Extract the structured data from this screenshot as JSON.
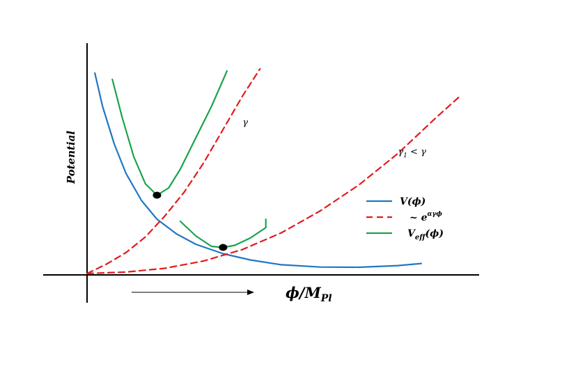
{
  "chart_data": {
    "type": "line",
    "title": "",
    "xlabel": "ϕ/M",
    "xlabel_sub": "Pl",
    "ylabel": "Potential",
    "xlim": [
      0,
      10
    ],
    "ylim": [
      0,
      10
    ],
    "grid": false,
    "direction_arrow": true,
    "curve_labels": [
      {
        "text": "γ",
        "x": 4.0,
        "y": 7.1
      },
      {
        "text": "γ",
        "sub": "1",
        "rest": " < γ",
        "x": 8.0,
        "y": 5.7
      }
    ],
    "legend": {
      "placement": "right",
      "entries": [
        {
          "pre": "V(",
          "sym": "ϕ",
          "post": ")",
          "sub": "",
          "sup": "",
          "color": "#1f77c4",
          "dash": "solid"
        },
        {
          "pre": "~ e",
          "sym": "",
          "post": "",
          "sub": "",
          "sup": "αγϕ",
          "color": "#e31a1c",
          "dash": "dashed"
        },
        {
          "pre": "V",
          "sym": "ϕ",
          "post": ")",
          "sub": "eff",
          "sup": "",
          "color": "#1aa34a",
          "dash": "solid"
        }
      ]
    },
    "series": [
      {
        "name": "V(ϕ)",
        "color": "#1f77c4",
        "dash": "solid",
        "x": [
          0.2,
          0.4,
          0.7,
          1.0,
          1.4,
          1.8,
          2.3,
          2.8,
          3.5,
          4.2,
          5.0,
          6.0,
          7.0,
          8.0,
          8.6
        ],
        "y": [
          9.6,
          8.0,
          6.2,
          4.8,
          3.5,
          2.6,
          1.9,
          1.4,
          0.95,
          0.65,
          0.42,
          0.31,
          0.3,
          0.38,
          0.48
        ]
      },
      {
        "name": "~ e^(αγϕ), γ",
        "color": "#e31a1c",
        "dash": "dashed",
        "x": [
          0.0,
          0.5,
          1.0,
          1.5,
          2.0,
          2.5,
          3.0,
          3.5,
          4.0,
          4.45
        ],
        "y": [
          0.0,
          0.45,
          1.0,
          1.75,
          2.75,
          3.9,
          5.3,
          6.9,
          8.5,
          9.8
        ]
      },
      {
        "name": "~ e^(αγ₁ϕ), γ₁ < γ",
        "color": "#e31a1c",
        "dash": "dashed",
        "x": [
          0.0,
          1.0,
          2.0,
          3.0,
          4.0,
          5.0,
          6.0,
          7.0,
          8.0,
          9.0,
          9.6
        ],
        "y": [
          0.0,
          0.07,
          0.25,
          0.6,
          1.15,
          1.95,
          3.0,
          4.25,
          5.75,
          7.5,
          8.5
        ]
      },
      {
        "name": "V_eff(ϕ), γ",
        "color": "#1aa34a",
        "dash": "solid",
        "x": [
          0.65,
          0.9,
          1.2,
          1.5,
          1.8,
          2.1,
          2.4,
          2.8,
          3.2,
          3.6
        ],
        "y": [
          9.3,
          7.5,
          5.6,
          4.3,
          3.75,
          4.1,
          5.0,
          6.5,
          8.0,
          9.7
        ]
      },
      {
        "name": "V_eff(ϕ), γ₁",
        "color": "#1aa34a",
        "dash": "solid",
        "x": [
          2.4,
          2.8,
          3.2,
          3.5,
          3.8,
          4.2,
          4.6,
          4.6
        ],
        "y": [
          2.5,
          1.8,
          1.3,
          1.25,
          1.35,
          1.7,
          2.2,
          2.6
        ]
      }
    ],
    "points": [
      {
        "name": "minimum-1",
        "x": 1.8,
        "y": 3.75
      },
      {
        "name": "minimum-2",
        "x": 3.5,
        "y": 1.25
      }
    ]
  }
}
